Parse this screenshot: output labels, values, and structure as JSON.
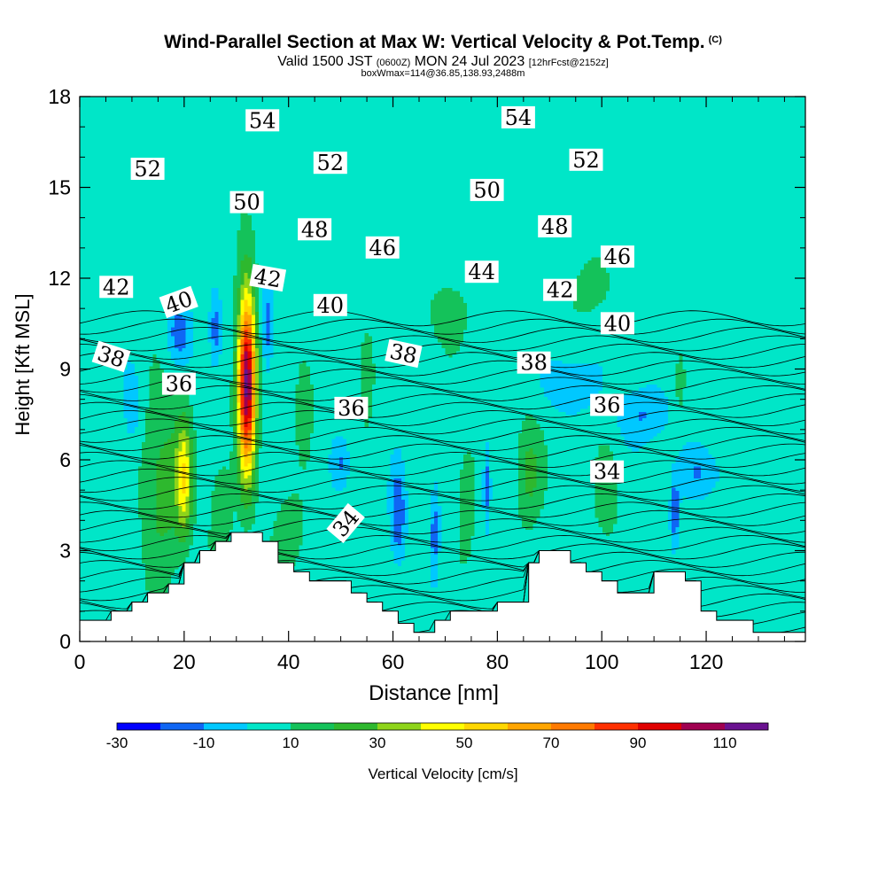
{
  "header": {
    "title": "Wind-Parallel Section at Max W: Vertical Velocity & Pot.Temp.",
    "copyright": "(C)",
    "valid_main": "Valid 1500 JST",
    "valid_utc": "(0600Z)",
    "valid_date": "MON 24 Jul 2023",
    "valid_fcst": "[12hrFcst@2152z]",
    "box_info": "boxWmax=114@36.85,138.93,2488m"
  },
  "chart_data": {
    "type": "heatmap",
    "xlabel": "Distance [nm]",
    "ylabel": "Height [Kft MSL]",
    "xlim": [
      0,
      139
    ],
    "ylim": [
      0,
      18
    ],
    "x_ticks": [
      "0",
      "20",
      "40",
      "60",
      "80",
      "100",
      "120"
    ],
    "y_ticks": [
      "0",
      "3",
      "6",
      "9",
      "12",
      "15",
      "18"
    ],
    "colorbar": {
      "label": "Vertical Velocity [cm/s]",
      "tick_labels": [
        "-30",
        "-10",
        "10",
        "30",
        "50",
        "70",
        "90",
        "110"
      ],
      "levels": [
        -30,
        -20,
        -10,
        0,
        10,
        20,
        30,
        40,
        50,
        60,
        70,
        80,
        90,
        100,
        110,
        120
      ],
      "colors": [
        "#0000ff",
        "#0f66f4",
        "#00c8ff",
        "#00e6c8",
        "#14c25a",
        "#2eb82e",
        "#8ed41a",
        "#ffff00",
        "#ffd700",
        "#ffa500",
        "#ff7a00",
        "#ff3000",
        "#e00000",
        "#a00050",
        "#6a1290"
      ]
    },
    "background_w": 5,
    "w_features": [
      {
        "x": 32,
        "z": 8.6,
        "w": 110,
        "sx": 1.7,
        "sz": 2.9
      },
      {
        "x": 20,
        "z": 5.4,
        "w": 38,
        "sx": 1.5,
        "sz": 1.9
      },
      {
        "x": 16,
        "z": 5.2,
        "w": 20,
        "sx": 4.0,
        "sz": 3.0
      },
      {
        "x": 36,
        "z": 10.4,
        "w": -22,
        "sx": 1.0,
        "sz": 1.4
      },
      {
        "x": 26,
        "z": 10.3,
        "w": -22,
        "sx": 1.2,
        "sz": 1.2
      },
      {
        "x": 19,
        "z": 10.2,
        "w": -20,
        "sx": 2.2,
        "sz": 1.0
      },
      {
        "x": 10,
        "z": 7.8,
        "w": -15,
        "sx": 1.5,
        "sz": 1.2
      },
      {
        "x": 61,
        "z": 4.2,
        "w": -25,
        "sx": 1.4,
        "sz": 1.5
      },
      {
        "x": 68,
        "z": 3.6,
        "w": -20,
        "sx": 0.9,
        "sz": 1.5
      },
      {
        "x": 78,
        "z": 5.2,
        "w": -22,
        "sx": 0.7,
        "sz": 1.3
      },
      {
        "x": 50,
        "z": 5.9,
        "w": -14,
        "sx": 1.6,
        "sz": 0.8
      },
      {
        "x": 94,
        "z": 8.5,
        "w": -14,
        "sx": 5.0,
        "sz": 0.9
      },
      {
        "x": 108,
        "z": 7.5,
        "w": -15,
        "sx": 5.0,
        "sz": 0.9
      },
      {
        "x": 119,
        "z": 5.6,
        "w": -14,
        "sx": 4.5,
        "sz": 0.8
      },
      {
        "x": 114,
        "z": 4.3,
        "w": -25,
        "sx": 0.8,
        "sz": 1.1
      },
      {
        "x": 86,
        "z": 5.6,
        "w": 18,
        "sx": 2.5,
        "sz": 1.7
      },
      {
        "x": 74,
        "z": 4.5,
        "w": 14,
        "sx": 1.6,
        "sz": 1.8
      },
      {
        "x": 101,
        "z": 4.8,
        "w": 12,
        "sx": 2.2,
        "sz": 1.5
      },
      {
        "x": 115,
        "z": 8.5,
        "w": 14,
        "sx": 0.8,
        "sz": 0.9
      },
      {
        "x": 27,
        "z": 4.2,
        "w": 15,
        "sx": 2.0,
        "sz": 1.8
      },
      {
        "x": 40,
        "z": 3.5,
        "w": 13,
        "sx": 3.0,
        "sz": 1.3
      },
      {
        "x": 55,
        "z": 9.0,
        "w": 14,
        "sx": 1.5,
        "sz": 1.6
      },
      {
        "x": 43,
        "z": 8.3,
        "w": 10,
        "sx": 2.0,
        "sz": 2.0
      },
      {
        "x": 98,
        "z": 11.7,
        "w": 10,
        "sx": 4.0,
        "sz": 1.0
      },
      {
        "x": 70,
        "z": 10.8,
        "w": 8,
        "sx": 6.0,
        "sz": 1.2
      }
    ],
    "terrain": [
      [
        0,
        0.7
      ],
      [
        6,
        0.7
      ],
      [
        6,
        1.0
      ],
      [
        10,
        1.0
      ],
      [
        10,
        1.3
      ],
      [
        13,
        1.3
      ],
      [
        13,
        1.6
      ],
      [
        17,
        1.6
      ],
      [
        17,
        1.9
      ],
      [
        20,
        1.9
      ],
      [
        20,
        2.6
      ],
      [
        23,
        2.6
      ],
      [
        23,
        3.0
      ],
      [
        26,
        3.0
      ],
      [
        26,
        3.3
      ],
      [
        29,
        3.3
      ],
      [
        29,
        3.6
      ],
      [
        35,
        3.6
      ],
      [
        35,
        3.3
      ],
      [
        38,
        3.3
      ],
      [
        38,
        2.6
      ],
      [
        41,
        2.6
      ],
      [
        41,
        2.3
      ],
      [
        44,
        2.3
      ],
      [
        44,
        2.0
      ],
      [
        52,
        2.0
      ],
      [
        52,
        1.6
      ],
      [
        55,
        1.6
      ],
      [
        55,
        1.3
      ],
      [
        58,
        1.3
      ],
      [
        58,
        1.0
      ],
      [
        61,
        1.0
      ],
      [
        61,
        0.6
      ],
      [
        64,
        0.6
      ],
      [
        64,
        0.3
      ],
      [
        68,
        0.3
      ],
      [
        68,
        0.7
      ],
      [
        71,
        0.7
      ],
      [
        71,
        1.0
      ],
      [
        80,
        1.0
      ],
      [
        80,
        1.3
      ],
      [
        86,
        1.3
      ],
      [
        86,
        2.6
      ],
      [
        88,
        2.6
      ],
      [
        88,
        3.0
      ],
      [
        94,
        3.0
      ],
      [
        94,
        2.6
      ],
      [
        97,
        2.6
      ],
      [
        97,
        2.3
      ],
      [
        100,
        2.3
      ],
      [
        100,
        2.0
      ],
      [
        103,
        2.0
      ],
      [
        103,
        1.6
      ],
      [
        110,
        1.6
      ],
      [
        110,
        2.3
      ],
      [
        116,
        2.3
      ],
      [
        116,
        2.0
      ],
      [
        119,
        2.0
      ],
      [
        119,
        1.0
      ],
      [
        122,
        1.0
      ],
      [
        122,
        0.7
      ],
      [
        129,
        0.7
      ],
      [
        129,
        0.3
      ],
      [
        139,
        0.3
      ]
    ],
    "theta_base": 33,
    "theta_step": 0.55,
    "theta_lines": 38,
    "contour_labels": [
      {
        "text": "54",
        "x": 35,
        "y": 17.2,
        "rot": 0
      },
      {
        "text": "54",
        "x": 84,
        "y": 17.3,
        "rot": 0
      },
      {
        "text": "52",
        "x": 13,
        "y": 15.6,
        "rot": 0
      },
      {
        "text": "52",
        "x": 48,
        "y": 15.8,
        "rot": 0
      },
      {
        "text": "52",
        "x": 97,
        "y": 15.9,
        "rot": 0
      },
      {
        "text": "50",
        "x": 32,
        "y": 14.5,
        "rot": 0
      },
      {
        "text": "50",
        "x": 78,
        "y": 14.9,
        "rot": 0
      },
      {
        "text": "48",
        "x": 45,
        "y": 13.6,
        "rot": 0
      },
      {
        "text": "48",
        "x": 91,
        "y": 13.7,
        "rot": 0
      },
      {
        "text": "46",
        "x": 58,
        "y": 13.0,
        "rot": 0
      },
      {
        "text": "46",
        "x": 103,
        "y": 12.7,
        "rot": 0
      },
      {
        "text": "44",
        "x": 77,
        "y": 12.2,
        "rot": 0
      },
      {
        "text": "42",
        "x": 7,
        "y": 11.7,
        "rot": 0
      },
      {
        "text": "42",
        "x": 36,
        "y": 12.0,
        "rot": 10
      },
      {
        "text": "42",
        "x": 92,
        "y": 11.6,
        "rot": 0
      },
      {
        "text": "40",
        "x": 19,
        "y": 11.2,
        "rot": -20
      },
      {
        "text": "40",
        "x": 48,
        "y": 11.1,
        "rot": 0
      },
      {
        "text": "40",
        "x": 103,
        "y": 10.5,
        "rot": 0
      },
      {
        "text": "38",
        "x": 6,
        "y": 9.4,
        "rot": 18
      },
      {
        "text": "38",
        "x": 62,
        "y": 9.5,
        "rot": 12
      },
      {
        "text": "38",
        "x": 87,
        "y": 9.2,
        "rot": 0
      },
      {
        "text": "36",
        "x": 19,
        "y": 8.5,
        "rot": 0
      },
      {
        "text": "36",
        "x": 52,
        "y": 7.7,
        "rot": 0
      },
      {
        "text": "36",
        "x": 101,
        "y": 7.8,
        "rot": 0
      },
      {
        "text": "34",
        "x": 51,
        "y": 3.9,
        "rot": -50
      },
      {
        "text": "34",
        "x": 101,
        "y": 5.6,
        "rot": 0
      }
    ]
  }
}
